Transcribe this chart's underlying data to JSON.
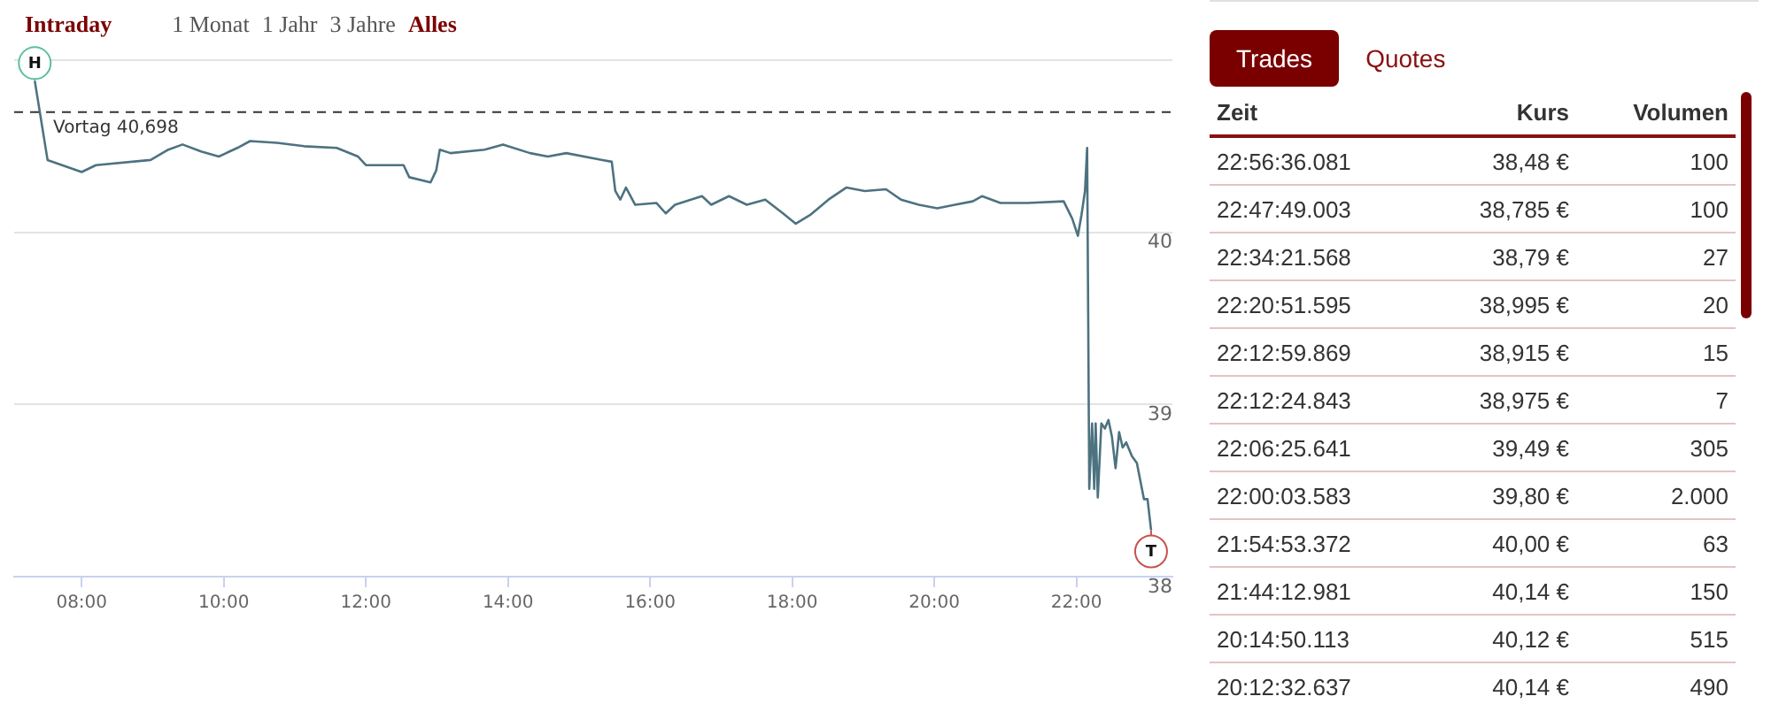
{
  "chart_data": [
    {
      "type": "line",
      "annotations": [
        "Intraday",
        "1 Monat",
        "1 Jahr",
        "3 Jahre",
        "Alles",
        {
          "text": "H",
          "x": 7.34,
          "y": 40.88
        },
        {
          "text": "T",
          "x": 23.05,
          "y": 38.27
        }
      ],
      "series": [
        {
          "color": "#4d7280",
          "x": [
            7.34,
            7.52,
            8.0,
            8.2,
            8.97,
            9.22,
            9.42,
            9.68,
            9.93,
            10.19,
            10.37,
            10.75,
            11.13,
            11.59,
            11.89,
            12.0,
            12.53,
            12.61,
            12.91,
            12.99,
            13.04,
            13.19,
            13.67,
            13.93,
            14.31,
            14.56,
            14.82,
            15.33,
            15.46,
            15.51,
            15.58,
            15.66,
            15.79,
            16.09,
            16.22,
            16.35,
            16.73,
            16.86,
            17.11,
            17.36,
            17.62,
            17.87,
            18.05,
            18.25,
            18.51,
            18.76,
            19.02,
            19.32,
            19.53,
            19.78,
            20.04,
            20.29,
            20.54,
            20.67,
            20.93,
            21.31,
            21.82,
            21.94,
            22.02,
            22.07,
            22.12,
            22.15,
            22.18,
            22.22,
            22.25,
            22.27,
            22.3,
            22.35,
            22.4,
            22.45,
            22.5,
            22.55,
            22.6,
            22.65,
            22.7,
            22.78,
            22.85,
            22.95,
            23.0,
            23.05
          ],
          "values": [
            40.88,
            40.42,
            40.35,
            40.39,
            40.42,
            40.48,
            40.51,
            40.47,
            40.44,
            40.49,
            40.53,
            40.52,
            40.5,
            40.49,
            40.44,
            40.39,
            40.39,
            40.32,
            40.29,
            40.36,
            40.48,
            40.46,
            40.48,
            40.51,
            40.46,
            40.44,
            40.46,
            40.42,
            40.41,
            40.24,
            40.19,
            40.26,
            40.16,
            40.17,
            40.11,
            40.16,
            40.21,
            40.16,
            40.21,
            40.16,
            40.19,
            40.11,
            40.05,
            40.1,
            40.19,
            40.26,
            40.24,
            40.25,
            40.19,
            40.16,
            40.14,
            40.16,
            40.18,
            40.21,
            40.17,
            40.17,
            40.18,
            40.08,
            39.98,
            40.1,
            40.24,
            40.49,
            38.51,
            38.89,
            38.51,
            38.89,
            38.46,
            38.89,
            38.86,
            38.91,
            38.81,
            38.63,
            38.84,
            38.75,
            38.78,
            38.7,
            38.66,
            38.45,
            38.45,
            38.27
          ]
        }
      ],
      "xlim": [
        7.05,
        23.35
      ],
      "xticks": [
        {
          "value": 8,
          "label": "08:00"
        },
        {
          "value": 10,
          "label": "10:00"
        },
        {
          "value": 12,
          "label": "12:00"
        },
        {
          "value": 14,
          "label": "14:00"
        },
        {
          "value": 16,
          "label": "16:00"
        },
        {
          "value": 18,
          "label": "18:00"
        },
        {
          "value": 20,
          "label": "20:00"
        },
        {
          "value": 22,
          "label": "22:00"
        }
      ],
      "ylim": [
        38,
        41
      ],
      "yticks": [
        38,
        39,
        40,
        {
          "value": 41,
          "label": null
        }
      ],
      "ref_lines": [
        {
          "axis": "y",
          "value": 40.698,
          "label": "Vortag 40,698",
          "color": "#333333",
          "line_style": "dashed"
        }
      ],
      "grid": "y",
      "legend": false,
      "marker": "none",
      "line_style": "solid"
    },
    {
      "type": "other",
      "categories": [
        "Zeit",
        "Kurs",
        "Volumen"
      ],
      "annotations": [
        "Trades",
        "Quotes",
        "22:56:36.081",
        "38,48 €",
        "100",
        "22:47:49.003",
        "38,785 €",
        "100",
        "22:34:21.568",
        "38,79 €",
        "27",
        "22:20:51.595",
        "38,995 €",
        "20",
        "22:12:59.869",
        "38,915 €",
        "15",
        "22:12:24.843",
        "38,975 €",
        "7",
        "22:06:25.641",
        "39,49 €",
        "305",
        "22:00:03.583",
        "39,80 €",
        "2.000",
        "21:54:53.372",
        "40,00 €",
        "63",
        "21:44:12.981",
        "40,14 €",
        "150",
        "20:14:50.113",
        "40,12 €",
        "515",
        "20:12:32.637",
        "40,14 €",
        "490"
      ]
    }
  ]
}
